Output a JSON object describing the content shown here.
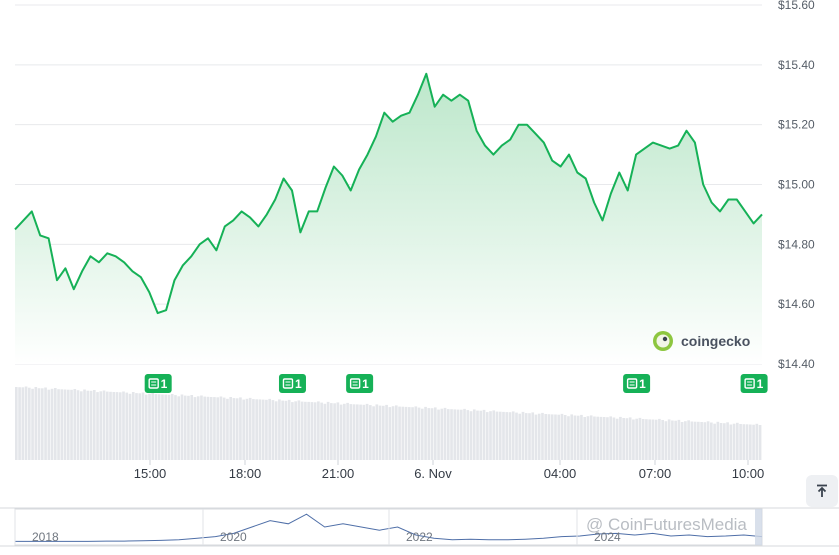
{
  "chart_data": {
    "type": "area",
    "y_tick_labels": [
      "$15.60",
      "$15.40",
      "$15.20",
      "$15.00",
      "$14.80",
      "$14.60",
      "$14.40"
    ],
    "ylim": [
      14.4,
      15.6
    ],
    "x_tick_labels": [
      "15:00",
      "18:00",
      "21:00",
      "6. Nov",
      "04:00",
      "07:00",
      "10:00"
    ],
    "grid": true,
    "series": [
      {
        "values": [
          14.85,
          14.88,
          14.91,
          14.83,
          14.82,
          14.68,
          14.72,
          14.65,
          14.71,
          14.76,
          14.74,
          14.77,
          14.76,
          14.74,
          14.71,
          14.69,
          14.64,
          14.57,
          14.58,
          14.68,
          14.73,
          14.76,
          14.8,
          14.82,
          14.78,
          14.86,
          14.88,
          14.91,
          14.89,
          14.86,
          14.9,
          14.95,
          15.02,
          14.98,
          14.84,
          14.91,
          14.91,
          14.99,
          15.06,
          15.03,
          14.98,
          15.05,
          15.1,
          15.16,
          15.24,
          15.21,
          15.23,
          15.24,
          15.3,
          15.37,
          15.26,
          15.3,
          15.28,
          15.3,
          15.28,
          15.18,
          15.13,
          15.1,
          15.13,
          15.15,
          15.2,
          15.2,
          15.17,
          15.14,
          15.08,
          15.06,
          15.1,
          15.04,
          15.02,
          14.94,
          14.88,
          14.97,
          15.04,
          14.98,
          15.1,
          15.12,
          15.14,
          15.13,
          15.12,
          15.13,
          15.18,
          15.14,
          15.0,
          14.94,
          14.91,
          14.95,
          14.95,
          14.91,
          14.87,
          14.9
        ]
      }
    ],
    "volume_bars": 230,
    "badges": [
      {
        "label": "1",
        "index": 17
      },
      {
        "label": "1",
        "index": 33
      },
      {
        "label": "1",
        "index": 41
      },
      {
        "label": "1",
        "index": 74
      },
      {
        "label": "1",
        "index": 88
      }
    ],
    "navigator": {
      "tick_labels": [
        "2018",
        "2020",
        "2022",
        "2024"
      ],
      "values": [
        0.05,
        0.05,
        0.05,
        0.05,
        0.05,
        0.06,
        0.06,
        0.07,
        0.08,
        0.1,
        0.15,
        0.2,
        0.3,
        0.5,
        0.7,
        0.6,
        0.9,
        0.5,
        0.6,
        0.5,
        0.4,
        0.5,
        0.25,
        0.15,
        0.1,
        0.12,
        0.1,
        0.1,
        0.12,
        0.15,
        0.2,
        0.22,
        0.28,
        0.3,
        0.25,
        0.3,
        0.22,
        0.25,
        0.2,
        0.22,
        0.25,
        0.2
      ]
    }
  },
  "brand": {
    "name": "coingecko",
    "accent": "#16b157"
  },
  "colors": {
    "line": "#16b157",
    "area_top": "#c7ecd3",
    "area_bottom": "#ffffff",
    "badge": "#16b157",
    "grid": "#e8e9ec"
  },
  "watermark": {
    "text": "@ CoinFuturesMedia"
  },
  "controls": {
    "scroll_top_icon": "arrow-up-to-line-icon"
  }
}
